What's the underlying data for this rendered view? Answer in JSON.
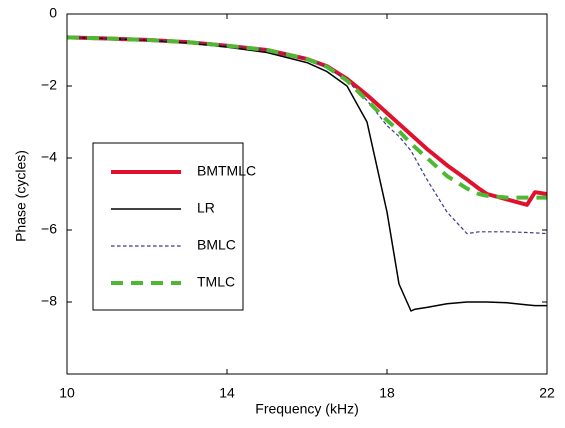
{
  "chart_data": {
    "type": "line",
    "x_label": "Frequency (kHz)",
    "y_label": "Phase (cycles)",
    "x": [
      10,
      11,
      12,
      13,
      14,
      15,
      16,
      16.5,
      17,
      17.5,
      18,
      18.3,
      18.6,
      18.7,
      19,
      19.5,
      20,
      20.3,
      20.5,
      21,
      21.5,
      21.7,
      22
    ],
    "series": [
      {
        "name": "BMTMLC",
        "color": "#e0102f",
        "linewidth": 4,
        "linestyle": "solid",
        "values": [
          -0.65,
          -0.68,
          -0.72,
          -0.78,
          -0.88,
          -1.0,
          -1.25,
          -1.45,
          -1.8,
          -2.25,
          -2.75,
          -3.05,
          -3.35,
          -3.45,
          -3.75,
          -4.2,
          -4.6,
          -4.85,
          -5.0,
          -5.15,
          -5.3,
          -4.95,
          -5.0
        ]
      },
      {
        "name": "LR",
        "color": "#000000",
        "linewidth": 1.5,
        "linestyle": "solid",
        "values": [
          -0.65,
          -0.68,
          -0.73,
          -0.8,
          -0.92,
          -1.07,
          -1.35,
          -1.6,
          -2.0,
          -3.0,
          -5.5,
          -7.5,
          -8.25,
          -8.2,
          -8.15,
          -8.05,
          -8.0,
          -8.0,
          -8.0,
          -8.02,
          -8.08,
          -8.1,
          -8.1
        ]
      },
      {
        "name": "BMLC",
        "color": "#3a3a8c",
        "linewidth": 1.2,
        "linestyle": "dashed",
        "values": [
          -0.65,
          -0.68,
          -0.72,
          -0.78,
          -0.88,
          -1.0,
          -1.25,
          -1.47,
          -1.85,
          -2.4,
          -3.1,
          -3.4,
          -3.8,
          -4.0,
          -4.6,
          -5.5,
          -6.1,
          -6.05,
          -6.05,
          -6.05,
          -6.07,
          -6.08,
          -6.1
        ]
      },
      {
        "name": "TMLC",
        "color": "#4fb833",
        "linewidth": 4,
        "linestyle": "dashed",
        "values": [
          -0.65,
          -0.68,
          -0.72,
          -0.78,
          -0.88,
          -1.0,
          -1.25,
          -1.47,
          -1.85,
          -2.4,
          -2.95,
          -3.25,
          -3.6,
          -3.7,
          -4.0,
          -4.5,
          -4.85,
          -5.0,
          -5.05,
          -5.1,
          -5.1,
          -5.1,
          -5.1
        ]
      }
    ],
    "xlim": [
      10,
      22
    ],
    "xticks": [
      10,
      14,
      18,
      22
    ],
    "ylim": [
      -10,
      0
    ],
    "yticks": [
      {
        "value": -8,
        "label": "−8"
      },
      {
        "value": -6,
        "label": "−6"
      },
      {
        "value": -4,
        "label": "−4"
      },
      {
        "value": -2,
        "label": "−2"
      },
      0
    ],
    "legend": "center-left",
    "grid": false
  }
}
